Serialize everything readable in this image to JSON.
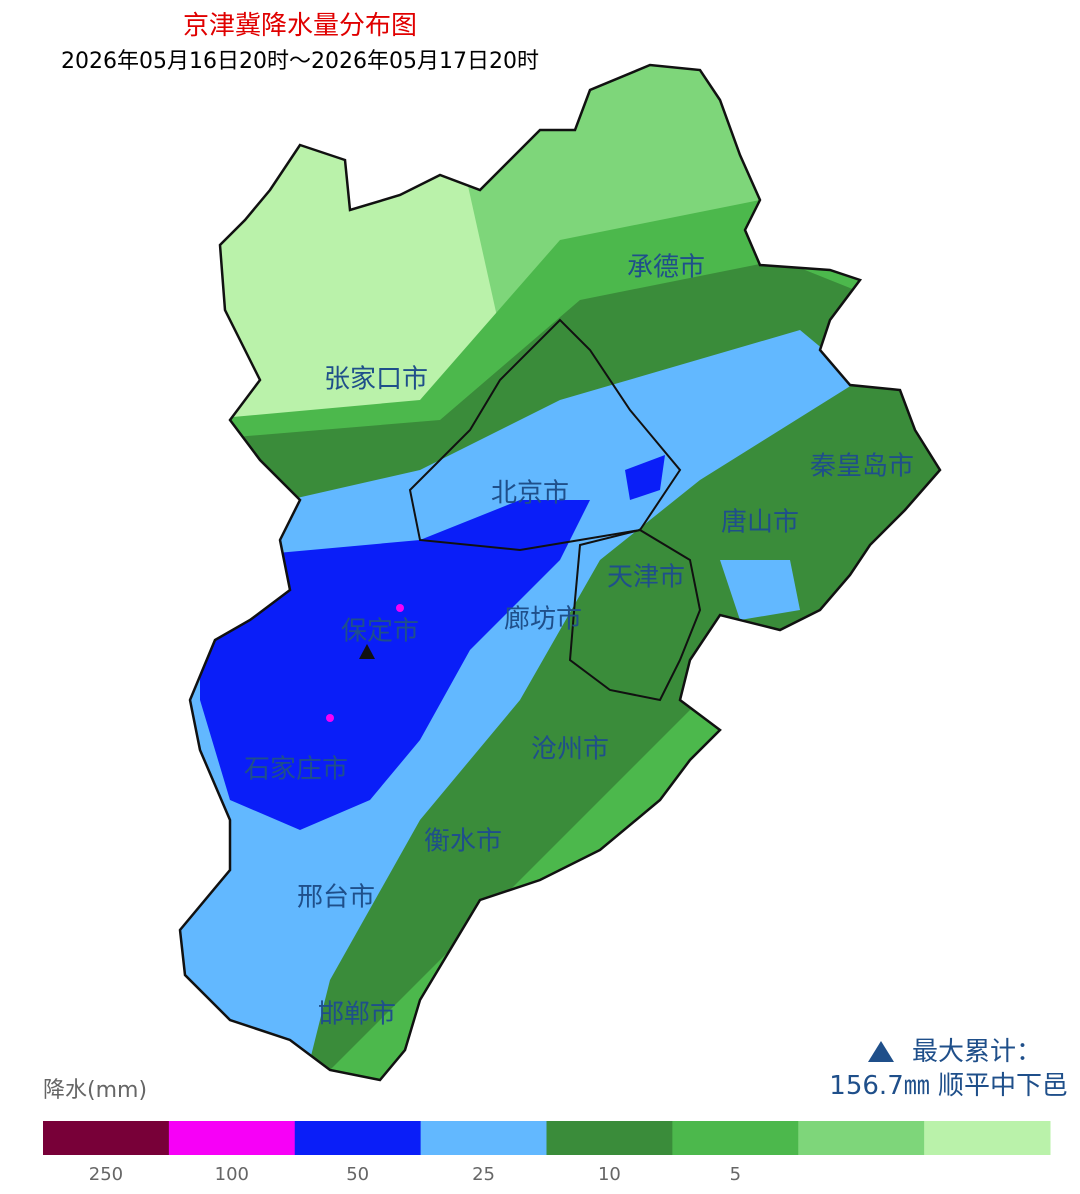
{
  "header": {
    "title": "京津冀降水量分布图",
    "subtitle": "2026年05月16日20时～2026年05月17日20时"
  },
  "map": {
    "cities": [
      "承德市",
      "张家口市",
      "北京市",
      "秦皇岛市",
      "唐山市",
      "天津市",
      "保定市",
      "廊坊市",
      "沧州市",
      "石家庄市",
      "衡水市",
      "邢台市",
      "邯郸市"
    ]
  },
  "annotation": {
    "label": "最大累计：",
    "value": "156.7㎜ 顺平中下邑"
  },
  "legend": {
    "title": "降水(mm)",
    "colors": [
      "#780038",
      "#f700f7",
      "#0a1ef8",
      "#62b8ff",
      "#3a8c3a",
      "#4cb84c",
      "#7ed67a",
      "#baf2aa"
    ],
    "ticks": [
      250,
      100,
      50,
      25,
      10,
      5
    ]
  }
}
